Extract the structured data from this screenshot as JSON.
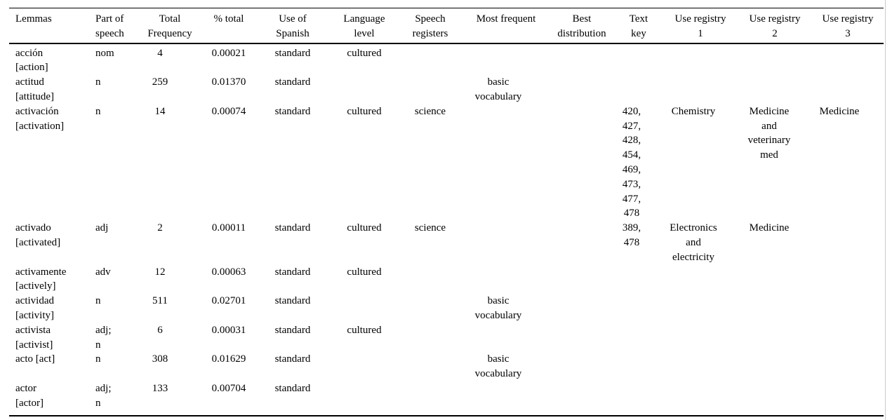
{
  "table": {
    "columns": [
      {
        "id": "lemma",
        "label": "Lemmas"
      },
      {
        "id": "pos",
        "label": "Part of\nspeech"
      },
      {
        "id": "freq",
        "label": "Total\nFrequency"
      },
      {
        "id": "pct",
        "label": "% total"
      },
      {
        "id": "use",
        "label": "Use of\nSpanish"
      },
      {
        "id": "level",
        "label": "Language\nlevel"
      },
      {
        "id": "registers",
        "label": "Speech\nregisters"
      },
      {
        "id": "most",
        "label": "Most frequent"
      },
      {
        "id": "best",
        "label": "Best\ndistribution"
      },
      {
        "id": "tkey",
        "label": "Text\nkey"
      },
      {
        "id": "reg1",
        "label": "Use registry\n1"
      },
      {
        "id": "reg2",
        "label": "Use registry\n2"
      },
      {
        "id": "reg3",
        "label": "Use registry\n3"
      }
    ],
    "rows": [
      {
        "lemma": "acción\n[action]",
        "pos": "nom",
        "freq": "4",
        "pct": "0.00021",
        "use": "standard",
        "level": "cultured",
        "registers": "",
        "most": "",
        "best": "",
        "tkey": "",
        "reg1": "",
        "reg2": "",
        "reg3": ""
      },
      {
        "lemma": "actitud\n[attitude]",
        "pos": "n",
        "freq": "259",
        "pct": "0.01370",
        "use": "standard",
        "level": "",
        "registers": "",
        "most": "basic\nvocabulary",
        "best": "",
        "tkey": "",
        "reg1": "",
        "reg2": "",
        "reg3": ""
      },
      {
        "lemma": "activación\n[activation]",
        "pos": "n",
        "freq": "14",
        "pct": "0.00074",
        "use": "standard",
        "level": "cultured",
        "registers": "science",
        "most": "",
        "best": "",
        "tkey": "420,\n427,\n428,\n454,\n469,\n473,\n477,\n478",
        "reg1": "Chemistry",
        "reg2": "Medicine\nand\nveterinary\nmed",
        "reg3": "Medicine"
      },
      {
        "lemma": "activado\n[activated]",
        "pos": "adj",
        "freq": "2",
        "pct": "0.00011",
        "use": "standard",
        "level": "cultured",
        "registers": "science",
        "most": "",
        "best": "",
        "tkey": "389,\n478",
        "reg1": "Electronics\nand\nelectricity",
        "reg2": "Medicine",
        "reg3": ""
      },
      {
        "lemma": "activamente\n[actively]",
        "pos": "adv",
        "freq": "12",
        "pct": "0.00063",
        "use": "standard",
        "level": "cultured",
        "registers": "",
        "most": "",
        "best": "",
        "tkey": "",
        "reg1": "",
        "reg2": "",
        "reg3": ""
      },
      {
        "lemma": "actividad\n[activity]",
        "pos": "n",
        "freq": "511",
        "pct": "0.02701",
        "use": "standard",
        "level": "",
        "registers": "",
        "most": "basic\nvocabulary",
        "best": "",
        "tkey": "",
        "reg1": "",
        "reg2": "",
        "reg3": ""
      },
      {
        "lemma": "activista\n[activist]",
        "pos": "adj;\nn",
        "freq": "6",
        "pct": "0.00031",
        "use": "standard",
        "level": "cultured",
        "registers": "",
        "most": "",
        "best": "",
        "tkey": "",
        "reg1": "",
        "reg2": "",
        "reg3": ""
      },
      {
        "lemma": "acto [act]",
        "pos": "n",
        "freq": "308",
        "pct": "0.01629",
        "use": "standard",
        "level": "",
        "registers": "",
        "most": "basic\nvocabulary",
        "best": "",
        "tkey": "",
        "reg1": "",
        "reg2": "",
        "reg3": ""
      },
      {
        "lemma": "actor\n[actor]",
        "pos": "adj;\nn",
        "freq": "133",
        "pct": "0.00704",
        "use": "standard",
        "level": "",
        "registers": "",
        "most": "",
        "best": "",
        "tkey": "",
        "reg1": "",
        "reg2": "",
        "reg3": ""
      }
    ]
  },
  "colors": {
    "background": "#ffffff",
    "text": "#000000",
    "rule": "#000000",
    "page_edge_line": "#cccccc"
  }
}
